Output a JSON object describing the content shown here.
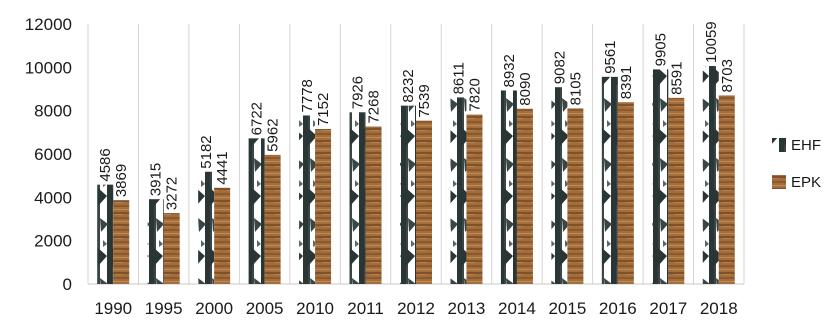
{
  "chart_data": {
    "type": "bar",
    "title": "",
    "xlabel": "",
    "ylabel": "",
    "ylim": [
      0,
      12000
    ],
    "yticks": [
      0,
      2000,
      4000,
      6000,
      8000,
      10000,
      12000
    ],
    "grid": "vertical",
    "legend_position": "right",
    "categories": [
      "1990",
      "1995",
      "2000",
      "2005",
      "2010",
      "2011",
      "2012",
      "2013",
      "2014",
      "2015",
      "2016",
      "2017",
      "2018"
    ],
    "series": [
      {
        "name": "EHF",
        "color": "#2e3b3b",
        "pattern": "birch-bark",
        "values": [
          4586,
          3915,
          5182,
          6722,
          7778,
          7926,
          8232,
          8611,
          8932,
          9082,
          9561,
          9905,
          10059
        ]
      },
      {
        "name": "EPK",
        "color": "#a06a3a",
        "pattern": "wood-grain",
        "values": [
          3869,
          3272,
          4441,
          5962,
          7152,
          7268,
          7539,
          7820,
          8090,
          8105,
          8391,
          8591,
          8703
        ]
      }
    ]
  }
}
